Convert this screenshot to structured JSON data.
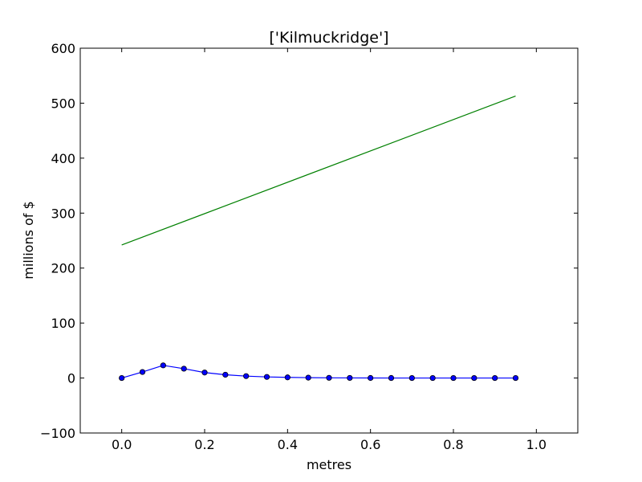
{
  "chart_data": {
    "type": "line",
    "title": "['Kilmuckridge']",
    "xlabel": "metres",
    "ylabel": "millions of $",
    "xlim": [
      -0.1,
      1.1
    ],
    "ylim": [
      -100,
      600
    ],
    "xticks": [
      0.0,
      0.2,
      0.4,
      0.6,
      0.8,
      1.0
    ],
    "xtick_labels": [
      "0.0",
      "0.2",
      "0.4",
      "0.6",
      "0.8",
      "1.0"
    ],
    "yticks": [
      -100,
      0,
      100,
      200,
      300,
      400,
      500,
      600
    ],
    "ytick_labels": [
      "−100",
      "0",
      "100",
      "200",
      "300",
      "400",
      "500",
      "600"
    ],
    "grid": false,
    "series": [
      {
        "color": "#0000ff",
        "marker": "circle",
        "x": [
          0.0,
          0.05,
          0.1,
          0.15,
          0.2,
          0.25,
          0.3,
          0.35,
          0.4,
          0.45,
          0.5,
          0.55,
          0.6,
          0.65,
          0.7,
          0.75,
          0.8,
          0.85,
          0.9,
          0.95
        ],
        "y": [
          0,
          11,
          23,
          17,
          10,
          6,
          3.5,
          2,
          1.2,
          0.7,
          0.4,
          0.2,
          0.1,
          0.05,
          0.03,
          0.02,
          0.01,
          0,
          0,
          0
        ]
      },
      {
        "color": "#008000",
        "marker": "none",
        "x": [
          0.0,
          0.95
        ],
        "y": [
          242,
          513
        ]
      }
    ]
  }
}
